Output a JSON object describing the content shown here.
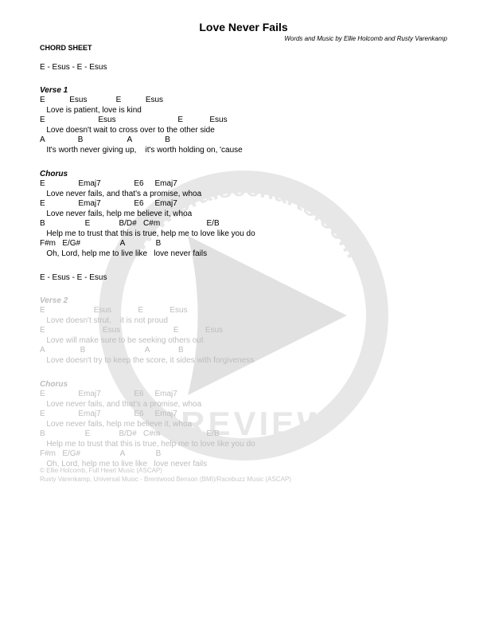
{
  "title": "Love Never Fails",
  "credits": "Words and Music by Ellie Holcomb and Rusty Varenkamp",
  "sheet_label": "CHORD SHEET",
  "intro": "E - Esus - E - Esus",
  "sections": [
    {
      "title": "Verse 1",
      "faded": false,
      "lines": [
        {
          "chords": "E           Esus             E           Esus",
          "lyrics": "   Love is patient, love is kind"
        },
        {
          "chords": "E                        Esus                            E            Esus",
          "lyrics": "   Love doesn't wait to cross over to the other side"
        },
        {
          "chords": "A               B                    A               B",
          "lyrics": "   It's worth never giving up,    it's worth holding on, 'cause"
        }
      ]
    },
    {
      "title": "Chorus",
      "faded": false,
      "lines": [
        {
          "chords": "E               Emaj7               E6     Emaj7",
          "lyrics": "   Love never fails, and that's a promise, whoa"
        },
        {
          "chords": "E               Emaj7               E6     Emaj7",
          "lyrics": "   Love never fails, help me believe it, whoa"
        },
        {
          "chords": "B                  E             B/D#   C#m                     E/B",
          "lyrics": "   Help me to trust that this is true, help me to love like you do"
        },
        {
          "chords": "F#m   E/G#                  A              B",
          "lyrics": "   Oh, Lord, help me to live like   love never fails"
        }
      ]
    }
  ],
  "interlude": "E - Esus - E - Esus",
  "sections2": [
    {
      "title": "Verse 2",
      "faded": true,
      "lines": [
        {
          "chords": "E                      Esus            E            Esus",
          "lyrics": "   Love doesn't strut,    it is not proud"
        },
        {
          "chords": "E                          Esus                        E            Esus",
          "lyrics": "   Love will make sure to be seeking others out"
        },
        {
          "chords": "A                B                           A             B",
          "lyrics": "   Love doesn't try to keep the score, it sides with forgiveness"
        }
      ]
    },
    {
      "title": "Chorus",
      "faded": true,
      "lines": [
        {
          "chords": "E               Emaj7               E6     Emaj7",
          "lyrics": "   Love never fails, and that's a promise, whoa"
        },
        {
          "chords": "E               Emaj7               E6     Emaj7",
          "lyrics": "   Love never fails, help me believe it, whoa"
        },
        {
          "chords": "B                  E             B/D#   C#m                     E/B",
          "lyrics": "   Help me to trust that this is true, help me to love like you do"
        },
        {
          "chords": "F#m   E/G#                  A              B",
          "lyrics": "   Oh, Lord, help me to live like   love never fails"
        }
      ]
    }
  ],
  "copyright": {
    "line1": "© Ellie Holcomb, Full Heart Music (ASCAP)",
    "line2": "Rusty Varenkamp, Universal Music - Brentwood Benson (BMI)/Racebuzz Music (ASCAP)"
  },
  "watermark": {
    "text": "www.praisecharts.com",
    "label": "PREVIEW",
    "circle_color": "#808080",
    "play_color": "#606060",
    "size": 380
  }
}
